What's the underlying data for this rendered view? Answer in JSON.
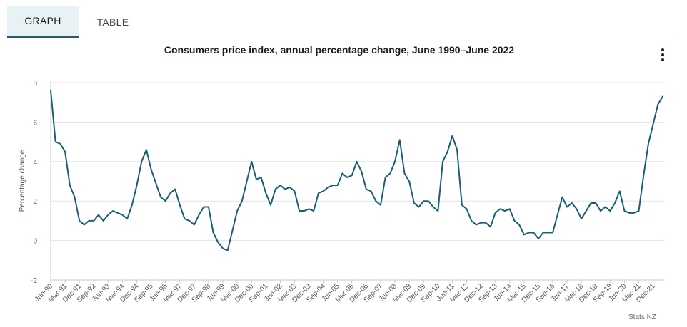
{
  "tabs": {
    "graph": "GRAPH",
    "table": "TABLE"
  },
  "menu": {
    "icon": "vertical-ellipsis-icon"
  },
  "credit": "Stats NZ",
  "chart_data": {
    "type": "line",
    "title": "Consumers price index, annual percentage change, June 1990–June 2022",
    "xlabel": "",
    "ylabel": "Percentage change",
    "ylim": [
      -2,
      8
    ],
    "yticks": [
      -2,
      0,
      2,
      4,
      6,
      8
    ],
    "grid": true,
    "x_tick_labels": [
      "Jun-90",
      "Mar-91",
      "Dec-91",
      "Sep-92",
      "Jun-93",
      "Mar-94",
      "Dec-94",
      "Sep-95",
      "Jun-96",
      "Mar-97",
      "Dec-97",
      "Sep-98",
      "Jun-99",
      "Mar-00",
      "Dec-00",
      "Sep-01",
      "Jun-02",
      "Mar-03",
      "Dec-03",
      "Sep-04",
      "Jun-05",
      "Mar-06",
      "Dec-06",
      "Sep-07",
      "Jun-08",
      "Mar-09",
      "Dec-09",
      "Sep-10",
      "Jun-11",
      "Mar-12",
      "Dec-12",
      "Sep-13",
      "Jun-14",
      "Mar-15",
      "Dec-15",
      "Sep-16",
      "Jun-17",
      "Mar-18",
      "Dec-18",
      "Sep-19",
      "Jun-20",
      "Mar-21",
      "Dec-21"
    ],
    "series": [
      {
        "name": "Annual percentage change",
        "color": "#1b5e74",
        "start": "Jun-90",
        "frequency": "quarterly",
        "values": [
          7.6,
          5.0,
          4.9,
          4.5,
          2.8,
          2.2,
          1.0,
          0.8,
          1.0,
          1.0,
          1.3,
          1.0,
          1.3,
          1.5,
          1.4,
          1.3,
          1.1,
          1.8,
          2.8,
          4.0,
          4.6,
          3.6,
          2.9,
          2.2,
          2.0,
          2.4,
          2.6,
          1.8,
          1.1,
          1.0,
          0.8,
          1.3,
          1.7,
          1.7,
          0.4,
          -0.1,
          -0.4,
          -0.5,
          0.5,
          1.5,
          2.0,
          3.0,
          4.0,
          3.1,
          3.2,
          2.4,
          1.8,
          2.6,
          2.8,
          2.6,
          2.7,
          2.5,
          1.5,
          1.5,
          1.6,
          1.5,
          2.4,
          2.5,
          2.7,
          2.8,
          2.8,
          3.4,
          3.2,
          3.3,
          4.0,
          3.5,
          2.6,
          2.5,
          2.0,
          1.8,
          3.2,
          3.4,
          4.0,
          5.1,
          3.4,
          3.0,
          1.9,
          1.7,
          2.0,
          2.0,
          1.7,
          1.5,
          4.0,
          4.5,
          5.3,
          4.6,
          1.8,
          1.6,
          1.0,
          0.8,
          0.9,
          0.9,
          0.7,
          1.4,
          1.6,
          1.5,
          1.6,
          1.0,
          0.8,
          0.3,
          0.4,
          0.4,
          0.1,
          0.4,
          0.4,
          0.4,
          1.3,
          2.2,
          1.7,
          1.9,
          1.6,
          1.1,
          1.5,
          1.9,
          1.9,
          1.5,
          1.7,
          1.5,
          1.9,
          2.5,
          1.5,
          1.4,
          1.4,
          1.5,
          3.3,
          4.9,
          5.9,
          6.9,
          7.3
        ]
      }
    ]
  }
}
